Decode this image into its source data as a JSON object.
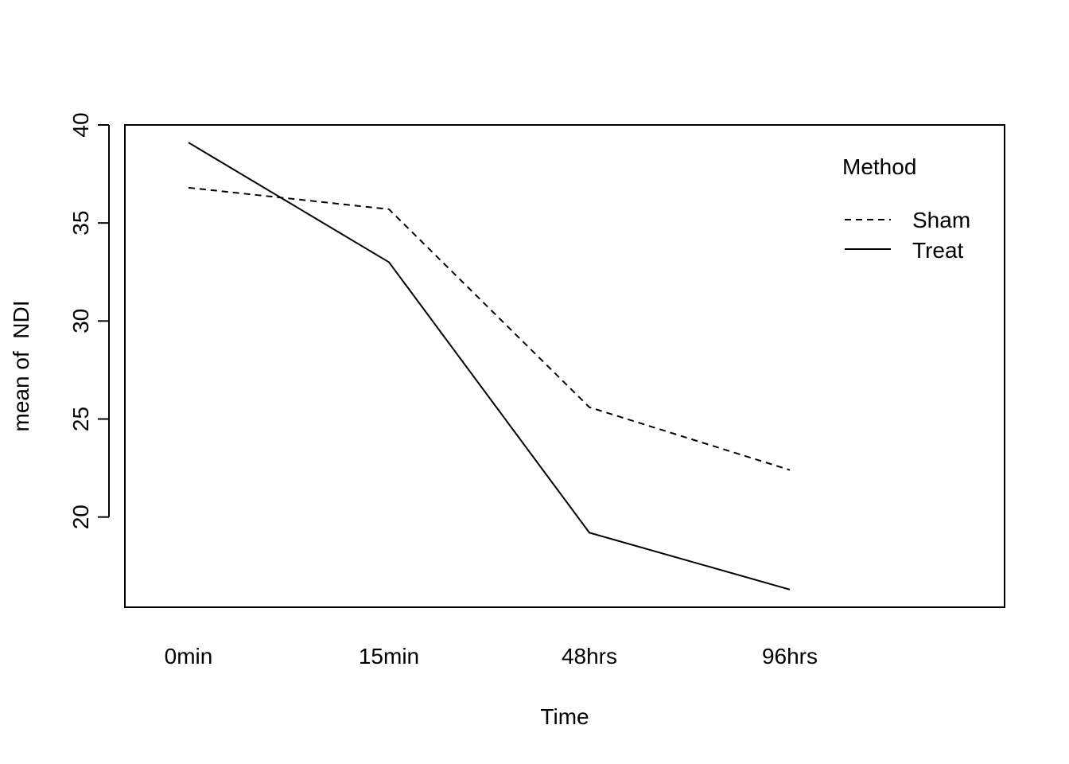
{
  "chart_data": {
    "type": "line",
    "title": "",
    "xlabel": "Time",
    "ylabel": "mean of  NDI",
    "categories": [
      "0min",
      "15min",
      "48hrs",
      "96hrs"
    ],
    "series": [
      {
        "name": "Sham",
        "line_style": "dashed",
        "values": [
          36.8,
          35.7,
          25.6,
          22.4
        ]
      },
      {
        "name": "Treat",
        "line_style": "solid",
        "values": [
          39.1,
          33.0,
          19.2,
          16.3
        ]
      }
    ],
    "yticks": [
      20,
      25,
      30,
      35,
      40
    ],
    "ylim": [
      15.4,
      40.0
    ],
    "grid": false,
    "legend": {
      "title": "Method",
      "position": "top-right",
      "entries": [
        "Sham",
        "Treat"
      ]
    },
    "colors": {
      "lines": "#000000",
      "background": "#ffffff"
    }
  }
}
